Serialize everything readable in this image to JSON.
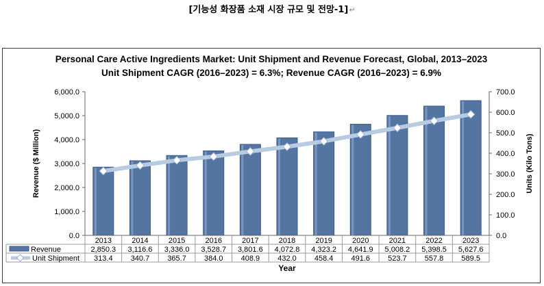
{
  "document": {
    "caption": "[기능성 화장품 소재 시장 규모 및 전망-1]",
    "return_mark": "↵"
  },
  "chart_data": {
    "type": "bar",
    "title": "Personal Care Active Ingredients Market: Unit Shipment and Revenue Forecast, Global, 2013–2023",
    "subtitle": "Unit Shipment CAGR (2016–2023) = 6.3%; Revenue CAGR (2016–2023) = 6.9%",
    "xlabel": "Year",
    "ylabel_left": "Revenue ($ Million)",
    "ylabel_right": "Units (Kilo Tons)",
    "categories": [
      "2013",
      "2014",
      "2015",
      "2016",
      "2017",
      "2018",
      "2019",
      "2020",
      "2021",
      "2022",
      "2023"
    ],
    "y_left": {
      "min": 0,
      "max": 6000,
      "step": 1000,
      "ticks": [
        "0.0",
        "1,000.0",
        "2,000.0",
        "3,000.0",
        "4,000.0",
        "5,000.0",
        "6,000.0"
      ]
    },
    "y_right": {
      "min": 0,
      "max": 700,
      "step": 100,
      "ticks": [
        "0.0",
        "100.0",
        "200.0",
        "300.0",
        "400.0",
        "500.0",
        "600.0",
        "700.0"
      ]
    },
    "grid": false,
    "series": [
      {
        "name": "Revenue",
        "type": "bar",
        "axis": "left",
        "color": "#5474a2",
        "values": [
          2850.3,
          3116.6,
          3336.0,
          3528.7,
          3801.6,
          4072.8,
          4323.2,
          4641.9,
          5008.2,
          5398.5,
          5627.6
        ],
        "labels": [
          "2,850.3",
          "3,116.6",
          "3,336.0",
          "3,528.7",
          "3,801.6",
          "4,072.8",
          "4,323.2",
          "4,641.9",
          "5,008.2",
          "5,398.5",
          "5,627.6"
        ]
      },
      {
        "name": "Unit Shipment",
        "type": "line",
        "axis": "right",
        "color": "#b7cbe2",
        "values": [
          313.4,
          340.7,
          365.7,
          384.0,
          408.9,
          432.0,
          458.4,
          491.6,
          523.7,
          557.8,
          589.5
        ],
        "labels": [
          "313.4",
          "340.7",
          "365.7",
          "384.0",
          "408.9",
          "432.0",
          "458.4",
          "491.6",
          "523.7",
          "557.8",
          "589.5"
        ]
      }
    ]
  }
}
